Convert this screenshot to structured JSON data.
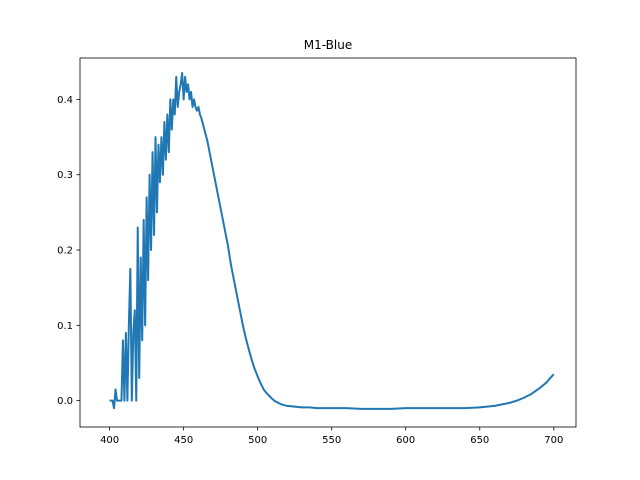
{
  "chart_data": {
    "type": "line",
    "title": "M1-Blue",
    "xlabel": "",
    "ylabel": "",
    "xlim": [
      380,
      715
    ],
    "ylim": [
      -0.035,
      0.455
    ],
    "xticks": [
      400,
      450,
      500,
      550,
      600,
      650,
      700
    ],
    "yticks": [
      0.0,
      0.1,
      0.2,
      0.3,
      0.4
    ],
    "ytick_labels": [
      "0.0",
      "0.1",
      "0.2",
      "0.3",
      "0.4"
    ],
    "grid": false,
    "series": [
      {
        "color": "#1f77b4",
        "x": [
          400,
          402,
          403,
          404,
          405,
          407,
          408,
          409,
          410,
          411,
          412,
          413,
          414,
          415,
          416,
          417,
          418,
          419,
          420,
          421,
          422,
          423,
          424,
          425,
          426,
          427,
          428,
          429,
          430,
          431,
          432,
          433,
          434,
          435,
          436,
          437,
          438,
          439,
          440,
          441,
          442,
          443,
          444,
          445,
          446,
          447,
          448,
          449,
          450,
          451,
          452,
          453,
          454,
          455,
          456,
          457,
          458,
          459,
          460,
          461,
          462,
          464,
          466,
          468,
          470,
          472,
          474,
          476,
          478,
          480,
          482,
          484,
          486,
          488,
          490,
          492,
          494,
          496,
          498,
          500,
          502,
          504,
          506,
          508,
          510,
          512,
          514,
          516,
          518,
          520,
          525,
          530,
          535,
          540,
          545,
          550,
          555,
          560,
          570,
          580,
          590,
          600,
          610,
          620,
          630,
          640,
          650,
          655,
          660,
          665,
          670,
          675,
          680,
          685,
          690,
          695,
          698,
          700
        ],
        "y": [
          0.0,
          0.0,
          -0.01,
          0.015,
          0.0,
          0.0,
          0.0,
          0.08,
          0.0,
          0.09,
          0.0,
          0.1,
          0.175,
          0.0,
          0.09,
          0.12,
          0.0,
          0.23,
          0.03,
          0.19,
          0.08,
          0.24,
          0.1,
          0.27,
          0.16,
          0.3,
          0.2,
          0.33,
          0.22,
          0.35,
          0.25,
          0.34,
          0.29,
          0.35,
          0.3,
          0.37,
          0.32,
          0.38,
          0.33,
          0.4,
          0.36,
          0.4,
          0.38,
          0.43,
          0.39,
          0.41,
          0.42,
          0.435,
          0.4,
          0.43,
          0.41,
          0.42,
          0.4,
          0.41,
          0.39,
          0.4,
          0.39,
          0.385,
          0.39,
          0.38,
          0.375,
          0.36,
          0.345,
          0.325,
          0.305,
          0.285,
          0.265,
          0.245,
          0.225,
          0.205,
          0.18,
          0.16,
          0.14,
          0.12,
          0.1,
          0.083,
          0.068,
          0.054,
          0.042,
          0.032,
          0.023,
          0.015,
          0.01,
          0.006,
          0.002,
          -0.001,
          -0.003,
          -0.005,
          -0.006,
          -0.007,
          -0.008,
          -0.009,
          -0.009,
          -0.01,
          -0.01,
          -0.01,
          -0.01,
          -0.01,
          -0.011,
          -0.011,
          -0.011,
          -0.01,
          -0.01,
          -0.01,
          -0.01,
          -0.01,
          -0.009,
          -0.008,
          -0.007,
          -0.005,
          -0.003,
          0.0,
          0.004,
          0.009,
          0.016,
          0.024,
          0.031,
          0.035
        ]
      }
    ]
  }
}
